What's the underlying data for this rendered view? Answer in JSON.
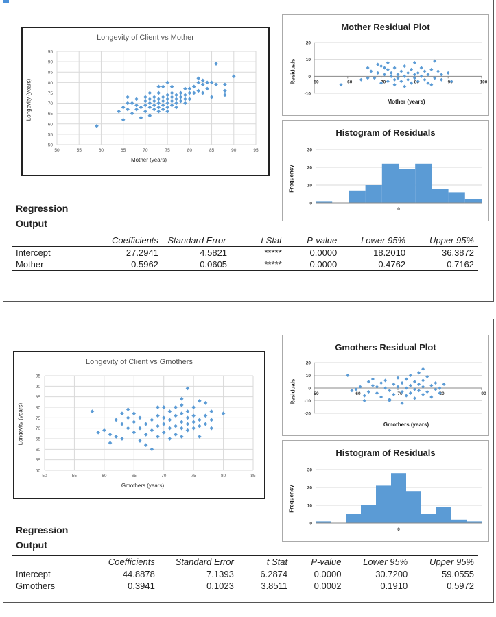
{
  "colors": {
    "marker": "#5b9bd5",
    "bar": "#5b9bd5",
    "grid": "#d9d9d9"
  },
  "sections": [
    {
      "regression_title_line1": "Regression",
      "regression_title_line2": "Output",
      "table": {
        "headers": [
          "",
          "Coefficients",
          "Standard Error",
          "t Stat",
          "P-value",
          "Lower 95%",
          "Upper 95%"
        ],
        "rows": [
          [
            "Intercept",
            "27.2941",
            "4.5821",
            "*****",
            "0.0000",
            "18.2010",
            "36.3872"
          ],
          [
            "Mother",
            "0.5962",
            "0.0605",
            "*****",
            "0.0000",
            "0.4762",
            "0.7162"
          ]
        ]
      }
    },
    {
      "regression_title_line1": "Regression",
      "regression_title_line2": "Output",
      "table": {
        "headers": [
          "",
          "Coefficients",
          "Standard Error",
          "t Stat",
          "P-value",
          "Lower 95%",
          "Upper 95%"
        ],
        "rows": [
          [
            "Intercept",
            "44.8878",
            "7.1393",
            "6.2874",
            "0.0000",
            "30.7200",
            "59.0555"
          ],
          [
            "Gmothers",
            "0.3941",
            "0.1023",
            "3.8511",
            "0.0002",
            "0.1910",
            "0.5972"
          ]
        ]
      }
    }
  ],
  "chart_data": [
    {
      "type": "scatter",
      "title": "Longevity of Client vs Mother",
      "xlabel": "Mother (years)",
      "ylabel": "Longevity (years)",
      "xlim": [
        50,
        95
      ],
      "ylim": [
        50,
        95
      ],
      "xticks": [
        "50",
        "55",
        "60",
        "65",
        "70",
        "75",
        "80",
        "85",
        "90",
        "95"
      ],
      "yticks": [
        "50",
        "55",
        "60",
        "65",
        "70",
        "75",
        "80",
        "85",
        "90",
        "95"
      ],
      "grid": true,
      "points": [
        [
          59,
          59
        ],
        [
          64,
          66
        ],
        [
          65,
          62
        ],
        [
          65,
          68
        ],
        [
          66,
          70
        ],
        [
          66,
          73
        ],
        [
          67,
          65
        ],
        [
          67,
          70
        ],
        [
          68,
          67
        ],
        [
          68,
          72
        ],
        [
          69,
          63
        ],
        [
          69,
          68
        ],
        [
          70,
          66
        ],
        [
          70,
          69
        ],
        [
          70,
          71
        ],
        [
          71,
          64
        ],
        [
          71,
          68
        ],
        [
          71,
          70
        ],
        [
          71,
          72
        ],
        [
          72,
          67
        ],
        [
          72,
          69
        ],
        [
          72,
          71
        ],
        [
          72,
          73
        ],
        [
          73,
          66
        ],
        [
          73,
          68
        ],
        [
          73,
          70
        ],
        [
          73,
          72
        ],
        [
          73,
          75
        ],
        [
          74,
          67
        ],
        [
          74,
          69
        ],
        [
          74,
          71
        ],
        [
          74,
          73
        ],
        [
          74,
          78
        ],
        [
          75,
          66
        ],
        [
          75,
          68
        ],
        [
          75,
          70
        ],
        [
          75,
          72
        ],
        [
          75,
          74
        ],
        [
          75,
          80
        ],
        [
          76,
          69
        ],
        [
          76,
          71
        ],
        [
          76,
          73
        ],
        [
          76,
          75
        ],
        [
          77,
          68
        ],
        [
          77,
          70
        ],
        [
          77,
          72
        ],
        [
          77,
          74
        ],
        [
          78,
          71
        ],
        [
          78,
          73
        ],
        [
          78,
          75
        ],
        [
          79,
          70
        ],
        [
          79,
          72
        ],
        [
          79,
          74
        ],
        [
          80,
          72
        ],
        [
          80,
          75
        ],
        [
          80,
          77
        ],
        [
          81,
          75
        ],
        [
          81,
          78
        ],
        [
          82,
          76
        ],
        [
          82,
          80
        ],
        [
          82,
          82
        ],
        [
          83,
          79
        ],
        [
          83,
          81
        ],
        [
          84,
          77
        ],
        [
          84,
          80
        ],
        [
          85,
          73
        ],
        [
          85,
          80
        ],
        [
          86,
          89
        ],
        [
          88,
          74
        ],
        [
          88,
          76
        ],
        [
          88,
          79
        ],
        [
          90,
          83
        ],
        [
          86,
          79
        ],
        [
          83,
          75
        ],
        [
          70,
          73
        ],
        [
          68,
          69
        ],
        [
          66,
          67
        ],
        [
          71,
          75
        ],
        [
          73,
          78
        ],
        [
          76,
          78
        ],
        [
          79,
          77
        ]
      ]
    },
    {
      "type": "scatter",
      "title": "Mother Residual Plot",
      "xlabel": "Mother (years)",
      "ylabel": "Residuals",
      "xlim": [
        50,
        100
      ],
      "ylim": [
        -10,
        20
      ],
      "xticks": [
        "50",
        "60",
        "70",
        "80",
        "90",
        "100"
      ],
      "yticks": [
        "-10",
        "0",
        "10",
        "20"
      ],
      "grid": true,
      "points": [
        [
          58,
          -5
        ],
        [
          64,
          -2
        ],
        [
          66,
          5
        ],
        [
          67,
          3
        ],
        [
          68,
          -1
        ],
        [
          69,
          2
        ],
        [
          70,
          -4
        ],
        [
          70,
          6
        ],
        [
          71,
          1
        ],
        [
          72,
          -3
        ],
        [
          72,
          4
        ],
        [
          73,
          0
        ],
        [
          73,
          2
        ],
        [
          74,
          -2
        ],
        [
          74,
          5
        ],
        [
          75,
          1
        ],
        [
          75,
          -1
        ],
        [
          76,
          3
        ],
        [
          76,
          -3
        ],
        [
          77,
          0
        ],
        [
          77,
          6
        ],
        [
          78,
          2
        ],
        [
          78,
          -2
        ],
        [
          79,
          4
        ],
        [
          79,
          -4
        ],
        [
          80,
          1
        ],
        [
          80,
          -1
        ],
        [
          81,
          2
        ],
        [
          81,
          -3
        ],
        [
          82,
          5
        ],
        [
          82,
          0
        ],
        [
          83,
          3
        ],
        [
          83,
          -2
        ],
        [
          84,
          1
        ],
        [
          85,
          -5
        ],
        [
          85,
          4
        ],
        [
          86,
          9
        ],
        [
          86,
          -1
        ],
        [
          87,
          3
        ],
        [
          88,
          -2
        ],
        [
          88,
          1
        ],
        [
          90,
          2
        ],
        [
          91,
          -3
        ],
        [
          77,
          -6
        ],
        [
          69,
          7
        ],
        [
          72,
          8
        ],
        [
          80,
          8
        ],
        [
          84,
          -4
        ],
        [
          74,
          -5
        ],
        [
          66,
          -1
        ],
        [
          71,
          5
        ]
      ]
    },
    {
      "type": "bar",
      "title": "Histogram of Residuals",
      "xlabel": "",
      "ylabel": "Frequency",
      "ylim": [
        0,
        30
      ],
      "yticks": [
        "0",
        "10",
        "20",
        "30"
      ],
      "center_tick": "0",
      "values": [
        1,
        0,
        7,
        10,
        22,
        19,
        22,
        8,
        6,
        2
      ]
    },
    {
      "type": "scatter",
      "title": "Longevity of Client vs Gmothers",
      "xlabel": "Gmothers (years)",
      "ylabel": "Longevity (years)",
      "xlim": [
        50,
        85
      ],
      "ylim": [
        50,
        95
      ],
      "xticks": [
        "50",
        "55",
        "60",
        "65",
        "70",
        "75",
        "80",
        "85"
      ],
      "yticks": [
        "50",
        "55",
        "60",
        "65",
        "70",
        "75",
        "80",
        "85",
        "90",
        "95"
      ],
      "grid": true,
      "points": [
        [
          58,
          78
        ],
        [
          59,
          68
        ],
        [
          60,
          69
        ],
        [
          61,
          63
        ],
        [
          61,
          67
        ],
        [
          62,
          66
        ],
        [
          63,
          65
        ],
        [
          63,
          72
        ],
        [
          63,
          77
        ],
        [
          64,
          70
        ],
        [
          64,
          75
        ],
        [
          64,
          79
        ],
        [
          65,
          68
        ],
        [
          65,
          73
        ],
        [
          66,
          64
        ],
        [
          66,
          70
        ],
        [
          66,
          75
        ],
        [
          67,
          62
        ],
        [
          67,
          67
        ],
        [
          67,
          72
        ],
        [
          68,
          60
        ],
        [
          68,
          69
        ],
        [
          68,
          74
        ],
        [
          69,
          66
        ],
        [
          69,
          71
        ],
        [
          69,
          76
        ],
        [
          69,
          80
        ],
        [
          70,
          68
        ],
        [
          70,
          72
        ],
        [
          70,
          75
        ],
        [
          71,
          65
        ],
        [
          71,
          70
        ],
        [
          71,
          74
        ],
        [
          71,
          78
        ],
        [
          72,
          67
        ],
        [
          72,
          71
        ],
        [
          72,
          76
        ],
        [
          72,
          80
        ],
        [
          73,
          66
        ],
        [
          73,
          70
        ],
        [
          73,
          73
        ],
        [
          73,
          77
        ],
        [
          73,
          84
        ],
        [
          74,
          69
        ],
        [
          74,
          72
        ],
        [
          74,
          75
        ],
        [
          74,
          78
        ],
        [
          74,
          89
        ],
        [
          75,
          70
        ],
        [
          75,
          73
        ],
        [
          75,
          76
        ],
        [
          75,
          80
        ],
        [
          76,
          66
        ],
        [
          76,
          71
        ],
        [
          76,
          74
        ],
        [
          76,
          83
        ],
        [
          77,
          72
        ],
        [
          77,
          76
        ],
        [
          77,
          82
        ],
        [
          78,
          70
        ],
        [
          78,
          74
        ],
        [
          78,
          78
        ],
        [
          80,
          77
        ],
        [
          65,
          77
        ],
        [
          62,
          74
        ],
        [
          70,
          80
        ],
        [
          73,
          81
        ]
      ]
    },
    {
      "type": "scatter",
      "title": "Gmothers Residual Plot",
      "xlabel": "Gmothers (years)",
      "ylabel": "Residuals",
      "xlim": [
        50,
        90
      ],
      "ylim": [
        -20,
        20
      ],
      "xticks": [
        "50",
        "60",
        "70",
        "80",
        "90"
      ],
      "yticks": [
        "-20",
        "-10",
        "0",
        "10",
        "20"
      ],
      "grid": true,
      "points": [
        [
          58,
          10
        ],
        [
          59,
          -2
        ],
        [
          60,
          -1
        ],
        [
          61,
          1
        ],
        [
          62,
          -6
        ],
        [
          63,
          5
        ],
        [
          63,
          -3
        ],
        [
          64,
          2
        ],
        [
          64,
          7
        ],
        [
          65,
          -4
        ],
        [
          65,
          1
        ],
        [
          66,
          4
        ],
        [
          66,
          -7
        ],
        [
          67,
          0
        ],
        [
          67,
          6
        ],
        [
          68,
          -2
        ],
        [
          68,
          -9
        ],
        [
          69,
          3
        ],
        [
          69,
          -5
        ],
        [
          70,
          1
        ],
        [
          70,
          8
        ],
        [
          71,
          -3
        ],
        [
          71,
          4
        ],
        [
          72,
          0
        ],
        [
          72,
          -6
        ],
        [
          72,
          7
        ],
        [
          73,
          2
        ],
        [
          73,
          -4
        ],
        [
          73,
          10
        ],
        [
          74,
          -1
        ],
        [
          74,
          5
        ],
        [
          74,
          -8
        ],
        [
          75,
          3
        ],
        [
          75,
          -2
        ],
        [
          75,
          12
        ],
        [
          76,
          -5
        ],
        [
          76,
          6
        ],
        [
          76,
          1
        ],
        [
          77,
          -3
        ],
        [
          77,
          9
        ],
        [
          78,
          2
        ],
        [
          78,
          -7
        ],
        [
          79,
          4
        ],
        [
          79,
          -1
        ],
        [
          80,
          0
        ],
        [
          80,
          -4
        ],
        [
          81,
          3
        ],
        [
          76,
          15
        ],
        [
          71,
          -12
        ],
        [
          68,
          -10
        ],
        [
          62,
          -10
        ]
      ]
    },
    {
      "type": "bar",
      "title": "Histogram of Residuals",
      "xlabel": "",
      "ylabel": "Frequency",
      "ylim": [
        0,
        30
      ],
      "yticks": [
        "0",
        "10",
        "20",
        "30"
      ],
      "center_tick": "0",
      "values": [
        1,
        0,
        5,
        10,
        21,
        28,
        18,
        5,
        9,
        2,
        1
      ]
    }
  ]
}
